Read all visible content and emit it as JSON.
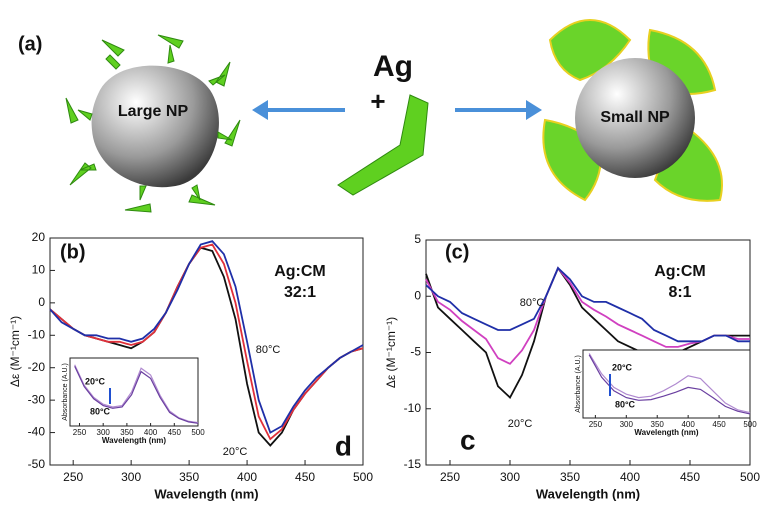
{
  "diagram": {
    "panel_label": "(a)",
    "left_label": "Large NP",
    "center_top": "Ag",
    "center_plus": "+",
    "right_label": "Small NP"
  },
  "chart_data": [
    {
      "type": "line",
      "panel_label": "(b)",
      "ratio_label": "Ag:CM",
      "ratio": "32:1",
      "label_high": "80°C",
      "label_low": "20°C",
      "corner_letter": "d",
      "xlabel": "Wavelength (nm)",
      "ylabel": "Δε (M⁻¹cm⁻¹)",
      "x": [
        230,
        240,
        250,
        260,
        270,
        280,
        290,
        300,
        310,
        320,
        330,
        340,
        350,
        360,
        370,
        380,
        390,
        400,
        410,
        420,
        430,
        440,
        450,
        460,
        470,
        480,
        490,
        500
      ],
      "series": [
        {
          "color": "#111111",
          "values": [
            -2,
            -5,
            -8,
            -10,
            -11,
            -12,
            -13,
            -14,
            -12,
            -9,
            -3,
            5,
            12,
            17,
            16,
            8,
            -5,
            -25,
            -40,
            -44,
            -40,
            -33,
            -28,
            -24,
            -20,
            -17,
            -15,
            -14
          ]
        },
        {
          "color": "#e0303a",
          "values": [
            -2,
            -5,
            -8,
            -10,
            -11,
            -12,
            -12,
            -13,
            -12,
            -9,
            -3,
            5,
            12,
            17,
            18,
            12,
            0,
            -18,
            -35,
            -42,
            -39,
            -33,
            -28,
            -24,
            -20,
            -17,
            -15,
            -14
          ]
        },
        {
          "color": "#1f2fa8",
          "values": [
            -2,
            -6,
            -8,
            -10,
            -10,
            -11,
            -11,
            -12,
            -11,
            -8,
            -3,
            4,
            12,
            18,
            19,
            15,
            5,
            -12,
            -30,
            -40,
            -38,
            -32,
            -27,
            -23,
            -20,
            -17,
            -15,
            -13
          ]
        }
      ],
      "xlim": [
        230,
        500
      ],
      "ylim": [
        -50,
        20
      ],
      "xticks": [
        250,
        300,
        350,
        400,
        450,
        500
      ],
      "yticks": [
        -50,
        -40,
        -30,
        -20,
        -10,
        0,
        10,
        20
      ]
    },
    {
      "type": "line",
      "label_high": "20°C",
      "label_low": "80°C",
      "xlabel": "Wavelength (nm)",
      "ylabel": "Absorbance (A.U.)",
      "x": [
        240,
        260,
        280,
        300,
        320,
        340,
        360,
        380,
        400,
        420,
        440,
        460,
        480,
        500
      ],
      "series": [
        {
          "color": "#b08ad0",
          "values": [
            0.9,
            0.6,
            0.42,
            0.32,
            0.28,
            0.3,
            0.5,
            0.85,
            0.75,
            0.45,
            0.22,
            0.12,
            0.07,
            0.05
          ]
        },
        {
          "color": "#6a3fa0",
          "values": [
            0.88,
            0.58,
            0.4,
            0.3,
            0.26,
            0.28,
            0.46,
            0.8,
            0.7,
            0.42,
            0.2,
            0.11,
            0.06,
            0.04
          ]
        }
      ],
      "xlim": [
        230,
        500
      ],
      "ylim": [
        0,
        1
      ],
      "xticks": [
        250,
        300,
        350,
        400,
        450,
        500
      ]
    },
    {
      "type": "line",
      "panel_label": "(c)",
      "ratio_label": "Ag:CM",
      "ratio": "8:1",
      "label_high": "80°C",
      "label_low": "20°C",
      "corner_letter": "c",
      "xlabel": "Wavelength (nm)",
      "ylabel": "Δε (M⁻¹cm⁻¹)",
      "x": [
        230,
        240,
        250,
        260,
        270,
        280,
        290,
        300,
        310,
        320,
        330,
        340,
        350,
        360,
        370,
        380,
        390,
        400,
        410,
        420,
        430,
        440,
        450,
        460,
        470,
        480,
        490,
        500
      ],
      "series": [
        {
          "color": "#111111",
          "values": [
            2,
            -1,
            -2,
            -3,
            -4,
            -5,
            -8,
            -9,
            -7,
            -4,
            0,
            2.5,
            1,
            -1,
            -2,
            -3,
            -4,
            -4.5,
            -5,
            -5,
            -5.5,
            -5,
            -4.5,
            -4,
            -3.5,
            -3.5,
            -3.5,
            -3.5
          ]
        },
        {
          "color": "#d040c0",
          "values": [
            1.5,
            -0.5,
            -1.2,
            -2.2,
            -3,
            -3.8,
            -5.5,
            -6,
            -4.8,
            -3,
            0,
            2.5,
            1.2,
            -0.5,
            -1.2,
            -1.8,
            -2.5,
            -3,
            -3.5,
            -4,
            -4.5,
            -4.5,
            -4.2,
            -4,
            -3.5,
            -3.5,
            -3.8,
            -3.8
          ]
        },
        {
          "color": "#1f2fa8",
          "values": [
            1,
            0,
            -0.5,
            -1.5,
            -2,
            -2.5,
            -3,
            -3,
            -2.5,
            -2,
            0,
            2.5,
            1.5,
            0,
            -0.5,
            -0.5,
            -1,
            -1.5,
            -2,
            -3,
            -3.5,
            -4,
            -4,
            -4,
            -3.5,
            -3.5,
            -4,
            -4
          ]
        }
      ],
      "xlim": [
        230,
        500
      ],
      "ylim": [
        -15,
        5
      ],
      "xticks": [
        250,
        300,
        350,
        400,
        450,
        500
      ],
      "yticks": [
        -15,
        -10,
        -5,
        0,
        5
      ]
    },
    {
      "type": "line",
      "label_high": "20°C",
      "label_low": "80°C",
      "xlabel": "Wavelength (nm)",
      "ylabel": "Absorbance (A.U.)",
      "x": [
        240,
        260,
        280,
        300,
        320,
        340,
        360,
        380,
        400,
        420,
        440,
        460,
        480,
        500
      ],
      "series": [
        {
          "color": "#b08ad0",
          "values": [
            0.95,
            0.65,
            0.45,
            0.35,
            0.3,
            0.32,
            0.4,
            0.5,
            0.62,
            0.58,
            0.4,
            0.22,
            0.12,
            0.08
          ]
        },
        {
          "color": "#6a3fa0",
          "values": [
            0.93,
            0.6,
            0.4,
            0.3,
            0.26,
            0.27,
            0.32,
            0.38,
            0.45,
            0.42,
            0.3,
            0.17,
            0.1,
            0.06
          ]
        }
      ],
      "xlim": [
        230,
        500
      ],
      "ylim": [
        0,
        1
      ],
      "xticks": [
        250,
        300,
        350,
        400,
        450,
        500
      ]
    }
  ]
}
